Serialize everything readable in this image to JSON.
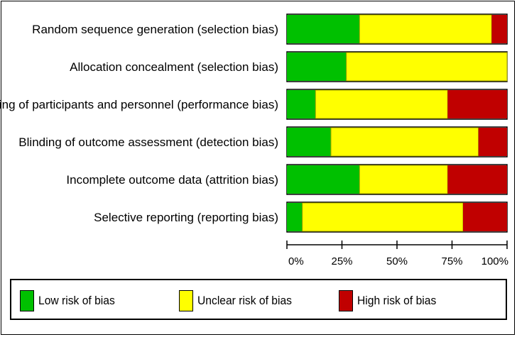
{
  "chart_data": {
    "type": "bar",
    "orientation": "horizontal",
    "stacked": true,
    "percent": true,
    "categories": [
      "Random sequence generation (selection bias)",
      "Allocation concealment (selection bias)",
      "Blinding of participants and personnel (performance bias)",
      "Blinding of outcome assessment (detection bias)",
      "Incomplete outcome data (attrition bias)",
      "Selective reporting (reporting bias)"
    ],
    "series": [
      {
        "name": "Low risk of bias",
        "color": "#00c000",
        "values": [
          33,
          27,
          13,
          20,
          33,
          7
        ]
      },
      {
        "name": "Unclear risk of bias",
        "color": "#ffff00",
        "values": [
          60,
          73,
          60,
          67,
          40,
          73
        ]
      },
      {
        "name": "High risk of bias",
        "color": "#c00000",
        "values": [
          7,
          0,
          27,
          13,
          27,
          20
        ]
      }
    ],
    "xlim": [
      0,
      100
    ],
    "xticks": [
      "0%",
      "25%",
      "50%",
      "75%",
      "100%"
    ],
    "grid": false,
    "legend_position": "bottom"
  },
  "legend": {
    "low": "Low risk of bias",
    "unclear": "Unclear risk of bias",
    "high": "High risk of bias"
  }
}
